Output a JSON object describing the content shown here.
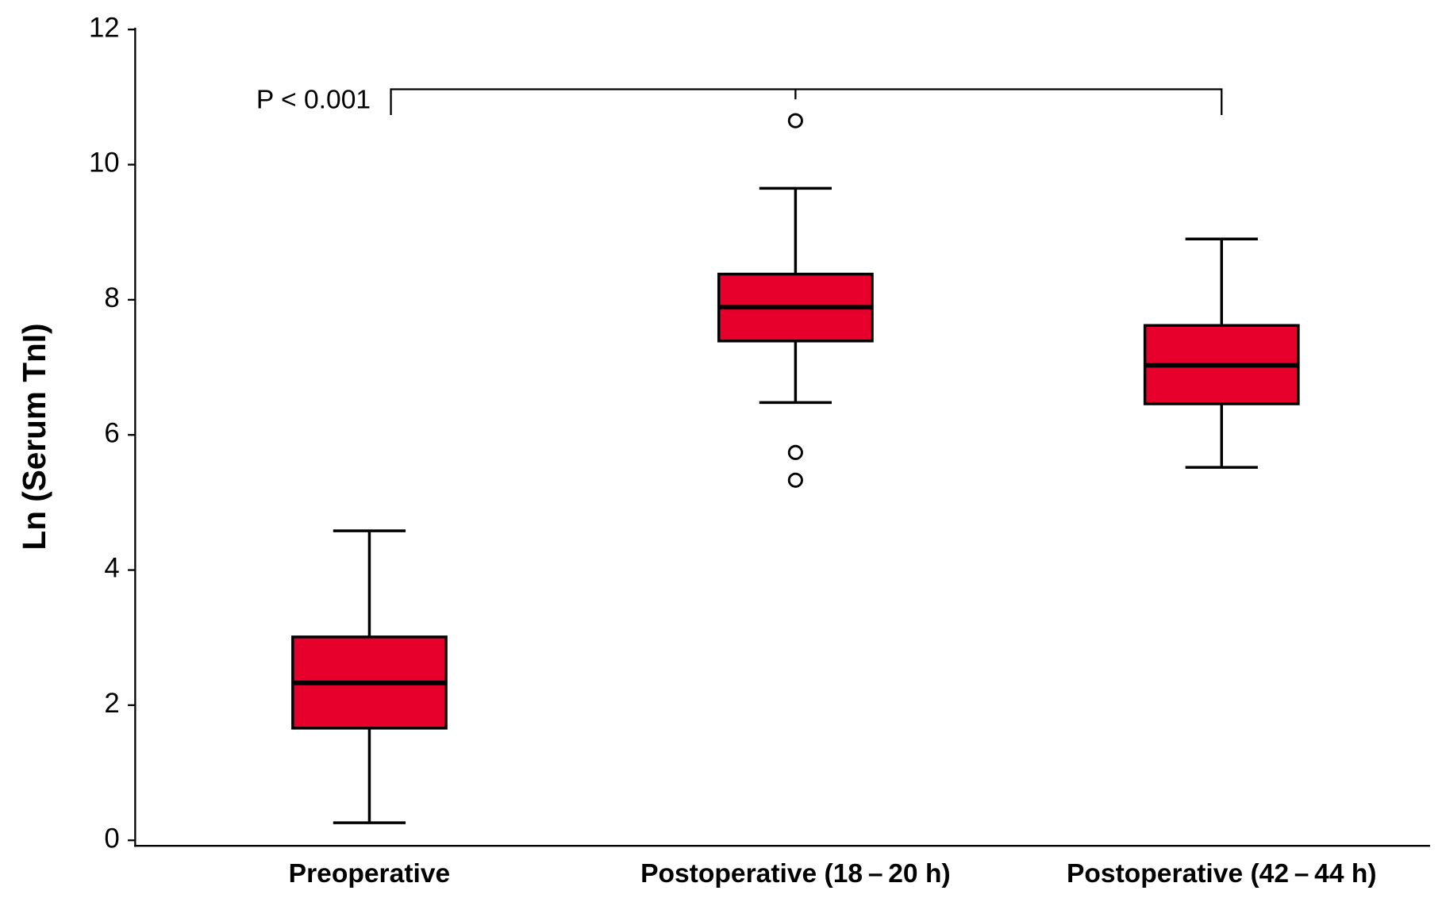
{
  "chart_data": {
    "type": "box",
    "ylabel": "Ln (Serum TnI)",
    "annotation": "P < 0.001",
    "categories": [
      "Preoperative",
      "Postoperative (18 – 20 h)",
      "Postoperative (42 – 44 h)"
    ],
    "color": "#e8002d",
    "boxes": [
      {
        "whislo": 0.26,
        "q1": 1.66,
        "median": 2.33,
        "q3": 3.01,
        "whishi": 4.58,
        "fliers": []
      },
      {
        "whislo": 6.48,
        "q1": 7.39,
        "median": 7.89,
        "q3": 8.38,
        "whishi": 9.65,
        "fliers": [
          10.65,
          5.74,
          5.33
        ]
      },
      {
        "whislo": 5.52,
        "q1": 6.46,
        "median": 7.03,
        "q3": 7.62,
        "whishi": 8.9,
        "fliers": []
      }
    ],
    "ylim": [
      0,
      12
    ],
    "yticks": [
      0,
      2,
      4,
      6,
      8,
      10,
      12
    ]
  }
}
